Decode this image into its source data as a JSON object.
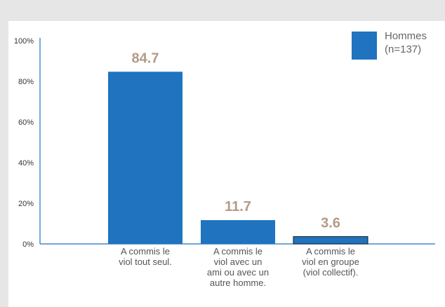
{
  "chart_data": {
    "type": "bar",
    "categories": [
      [
        "A commis le",
        "viol tout seul."
      ],
      [
        "A commis le",
        "viol avec un",
        "ami ou avec un",
        "autre homme."
      ],
      [
        "A commis le",
        "viol en groupe",
        "(viol collectif)."
      ]
    ],
    "series": [
      {
        "name": "Hommes (n=137)",
        "legend_lines": [
          "Hommes",
          "(n=137)"
        ],
        "values": [
          84.7,
          11.7,
          3.6
        ]
      }
    ],
    "value_labels": [
      "84.7",
      "11.7",
      "3.6"
    ],
    "yticks": [
      "0%",
      "20%",
      "40%",
      "60%",
      "80%",
      "100%"
    ],
    "ylim": [
      0,
      100
    ],
    "legend_position": "top-right",
    "colors": {
      "bar": "#1f73bf",
      "value_label": "#b49a86",
      "axis": "#1f73bf",
      "background": "#e6e6e6"
    }
  }
}
